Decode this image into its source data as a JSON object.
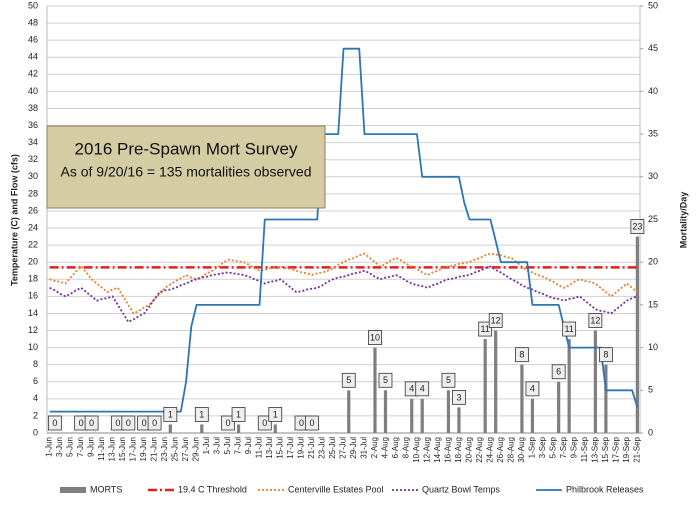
{
  "chart_data": {
    "type": "combo",
    "title": "2016 Pre-Spawn Mort Survey",
    "subtitle": "As of 9/20/16 = 135 mortalities observed",
    "y_label": "Temperature (C) and Flow (cfs)",
    "y2_label": "Mortality/Day",
    "ylim": [
      0,
      50
    ],
    "yticks": [
      0,
      2,
      4,
      6,
      8,
      10,
      12,
      14,
      16,
      18,
      20,
      22,
      24,
      26,
      28,
      30,
      32,
      34,
      36,
      38,
      40,
      42,
      44,
      46,
      48,
      50
    ],
    "y2lim": [
      0,
      50
    ],
    "y2ticks": [
      0,
      5,
      10,
      15,
      20,
      25,
      30,
      35,
      40,
      45,
      50
    ],
    "grid": true,
    "legend": "bottom",
    "categories": [
      "1-Jun",
      null,
      "3-Jun",
      null,
      "5-Jun",
      null,
      "7-Jun",
      null,
      "9-Jun",
      null,
      "11-Jun",
      null,
      "13-Jun",
      null,
      "15-Jun",
      null,
      "17-Jun",
      null,
      "19-Jun",
      null,
      "21-Jun",
      null,
      "23-Jun",
      null,
      "25-Jun",
      null,
      "27-Jun",
      null,
      "29-Jun",
      null,
      "1-Jul",
      null,
      "3-Jul",
      null,
      "5-Jul",
      null,
      "7-Jul",
      null,
      "9-Jul",
      null,
      "11-Jul",
      null,
      "13-Jul",
      null,
      "15-Jul",
      null,
      "17-Jul",
      null,
      "19-Jul",
      null,
      "21-Jul",
      null,
      "23-Jul",
      null,
      "25-Jul",
      null,
      "27-Jul",
      null,
      "29-Jul",
      null,
      "31-Jul",
      null,
      "2-Aug",
      null,
      "4-Aug",
      null,
      "6-Aug",
      null,
      "8-Aug",
      null,
      "10-Aug",
      null,
      "12-Aug",
      null,
      "14-Aug",
      null,
      "16-Aug",
      null,
      "18-Aug",
      null,
      "20-Aug",
      null,
      "22-Aug",
      null,
      "24-Aug",
      null,
      "26-Aug",
      null,
      "28-Aug",
      null,
      "30-Aug",
      null,
      "1-Sep",
      null,
      "3-Sep",
      null,
      "5-Sep",
      null,
      "7-Sep",
      null,
      "9-Sep",
      null,
      "11-Sep",
      null,
      "13-Sep",
      null,
      "15-Sep",
      null,
      "17-Sep",
      null,
      "19-Sep",
      null,
      "21-Sep"
    ],
    "series": [
      {
        "name": "MORTS",
        "kind": "bar",
        "axis": "y2",
        "color": "#7f7f7f",
        "data_labels": true,
        "values": [
          null,
          0,
          null,
          null,
          null,
          null,
          0,
          null,
          0,
          null,
          null,
          null,
          null,
          0,
          null,
          0,
          null,
          null,
          0,
          null,
          0,
          null,
          null,
          1,
          null,
          null,
          null,
          null,
          null,
          1,
          null,
          null,
          null,
          null,
          0,
          null,
          1,
          null,
          null,
          null,
          null,
          0,
          null,
          1,
          null,
          null,
          null,
          null,
          0,
          null,
          0,
          null,
          null,
          null,
          null,
          null,
          null,
          5,
          null,
          null,
          null,
          null,
          10,
          null,
          5,
          null,
          null,
          null,
          null,
          4,
          null,
          4,
          null,
          null,
          null,
          null,
          5,
          null,
          3,
          null,
          null,
          null,
          null,
          11,
          null,
          12,
          null,
          null,
          null,
          null,
          8,
          null,
          4,
          null,
          null,
          null,
          null,
          6,
          null,
          11,
          null,
          null,
          null,
          null,
          12,
          null,
          8,
          null,
          null,
          null,
          null,
          null,
          23
        ]
      },
      {
        "name": "19.4 C Threshold",
        "kind": "line",
        "line_style": "dash-dot",
        "color": "#e0201c",
        "values": [
          19.4,
          19.4,
          19.4,
          19.4,
          19.4,
          19.4,
          19.4,
          19.4,
          19.4,
          19.4,
          19.4,
          19.4,
          19.4,
          19.4,
          19.4,
          19.4,
          19.4,
          19.4,
          19.4,
          19.4,
          19.4,
          19.4,
          19.4,
          19.4,
          19.4,
          19.4,
          19.4,
          19.4,
          19.4,
          19.4,
          19.4,
          19.4,
          19.4,
          19.4,
          19.4,
          19.4,
          19.4,
          19.4,
          19.4,
          19.4,
          19.4,
          19.4,
          19.4,
          19.4,
          19.4,
          19.4,
          19.4,
          19.4,
          19.4,
          19.4,
          19.4,
          19.4,
          19.4,
          19.4,
          19.4,
          19.4,
          19.4,
          19.4,
          19.4,
          19.4,
          19.4,
          19.4,
          19.4,
          19.4,
          19.4,
          19.4,
          19.4,
          19.4,
          19.4,
          19.4,
          19.4,
          19.4,
          19.4,
          19.4,
          19.4,
          19.4,
          19.4,
          19.4,
          19.4,
          19.4,
          19.4,
          19.4,
          19.4,
          19.4,
          19.4,
          19.4,
          19.4,
          19.4,
          19.4,
          19.4,
          19.4,
          19.4,
          19.4,
          19.4,
          19.4,
          19.4,
          19.4,
          19.4,
          19.4,
          19.4,
          19.4,
          19.4,
          19.4,
          19.4,
          19.4,
          19.4,
          19.4,
          19.4,
          19.4,
          19.4,
          19.4,
          19.4,
          19.4
        ]
      },
      {
        "name": "Centerville Estates Pool",
        "kind": "line",
        "line_style": "dotted",
        "color": "#ed7d31",
        "values": [
          18,
          17.8,
          17.7,
          17.5,
          18.2,
          18.9,
          19.5,
          18.8,
          18,
          17.5,
          17,
          16.5,
          16.8,
          17,
          16,
          15,
          14,
          14.3,
          14.7,
          15,
          15.7,
          16.3,
          17,
          17.4,
          17.8,
          18.1,
          18.5,
          18.2,
          18,
          18.3,
          18.7,
          19,
          19.4,
          19.9,
          20.3,
          20.2,
          20.1,
          20,
          19.7,
          19.3,
          19,
          19.1,
          19.3,
          19.4,
          19.5,
          19.3,
          19.2,
          19,
          18.8,
          18.7,
          18.5,
          18.7,
          18.8,
          19,
          19.3,
          19.7,
          20,
          20.3,
          20.5,
          20.8,
          21,
          20.5,
          20,
          19.5,
          19.8,
          20.2,
          20.5,
          20.2,
          19.8,
          19.5,
          19.2,
          18.8,
          18.5,
          18.8,
          19,
          19.3,
          19.5,
          19.6,
          19.8,
          19.9,
          20,
          20.3,
          20.5,
          20.8,
          21,
          20.9,
          20.8,
          20.6,
          20.5,
          20,
          19.5,
          19,
          18.8,
          18.5,
          18.3,
          18,
          17.7,
          17.3,
          17,
          17.3,
          17.7,
          18,
          17.8,
          17.7,
          17.5,
          17,
          16.5,
          16,
          16.5,
          17,
          17.5,
          17,
          16.5
        ]
      },
      {
        "name": "Quartz Bowl Temps",
        "kind": "line",
        "line_style": "dotted",
        "color": "#7030a0",
        "values": [
          17,
          16.7,
          16.3,
          16,
          16.3,
          16.7,
          17,
          16.5,
          16,
          15.5,
          15.7,
          15.8,
          16,
          15,
          14,
          13,
          13.3,
          13.7,
          14,
          14.8,
          15.7,
          16.5,
          16.7,
          16.8,
          17,
          17.3,
          17.5,
          17.8,
          18,
          18.2,
          18.3,
          18.5,
          18.6,
          18.7,
          18.8,
          18.7,
          18.6,
          18.5,
          18.3,
          18,
          17.8,
          17.5,
          17.7,
          17.8,
          18,
          17.5,
          17,
          16.5,
          16.6,
          16.8,
          16.9,
          17,
          17.3,
          17.7,
          18,
          18.2,
          18.3,
          18.5,
          18.7,
          18.8,
          19,
          18.7,
          18.3,
          18,
          18.2,
          18.3,
          18.5,
          18.2,
          17.8,
          17.5,
          17.3,
          17.2,
          17,
          17.3,
          17.5,
          17.8,
          18,
          18.1,
          18.3,
          18.4,
          18.5,
          18.8,
          19,
          19.3,
          19.5,
          19.1,
          18.8,
          18.4,
          18,
          17.7,
          17.3,
          17,
          16.8,
          16.5,
          16.3,
          16,
          15.8,
          15.7,
          15.5,
          15.7,
          15.8,
          16,
          15.5,
          15,
          14.5,
          14.3,
          14.2,
          14,
          14.5,
          15,
          15.5,
          15.8,
          16
        ]
      },
      {
        "name": "Philbrook Releases",
        "kind": "line",
        "line_style": "solid",
        "color": "#2e75b6",
        "values": [
          2.5,
          2.5,
          2.5,
          2.5,
          2.5,
          2.5,
          2.5,
          2.5,
          2.5,
          2.5,
          2.5,
          2.5,
          2.5,
          2.5,
          2.5,
          2.5,
          2.5,
          2.5,
          2.5,
          2.5,
          2.5,
          2.5,
          2.5,
          2.5,
          2.5,
          2.5,
          6,
          12.5,
          15,
          15,
          15,
          15,
          15,
          15,
          15,
          15,
          15,
          15,
          15,
          15,
          15,
          25,
          25,
          25,
          25,
          25,
          25,
          25,
          25,
          25,
          25,
          25,
          35,
          35,
          35,
          35,
          45,
          45,
          45,
          45,
          35,
          35,
          35,
          35,
          35,
          35,
          35,
          35,
          35,
          35,
          35,
          30,
          30,
          30,
          30,
          30,
          30,
          30,
          30,
          27,
          25,
          25,
          25,
          25,
          25,
          22.5,
          20,
          20,
          20,
          20,
          20,
          20,
          15,
          15,
          15,
          15,
          15,
          15,
          12.5,
          10,
          10,
          10,
          10,
          10,
          10,
          10,
          5,
          5,
          5,
          5,
          5,
          5,
          3
        ]
      }
    ]
  }
}
